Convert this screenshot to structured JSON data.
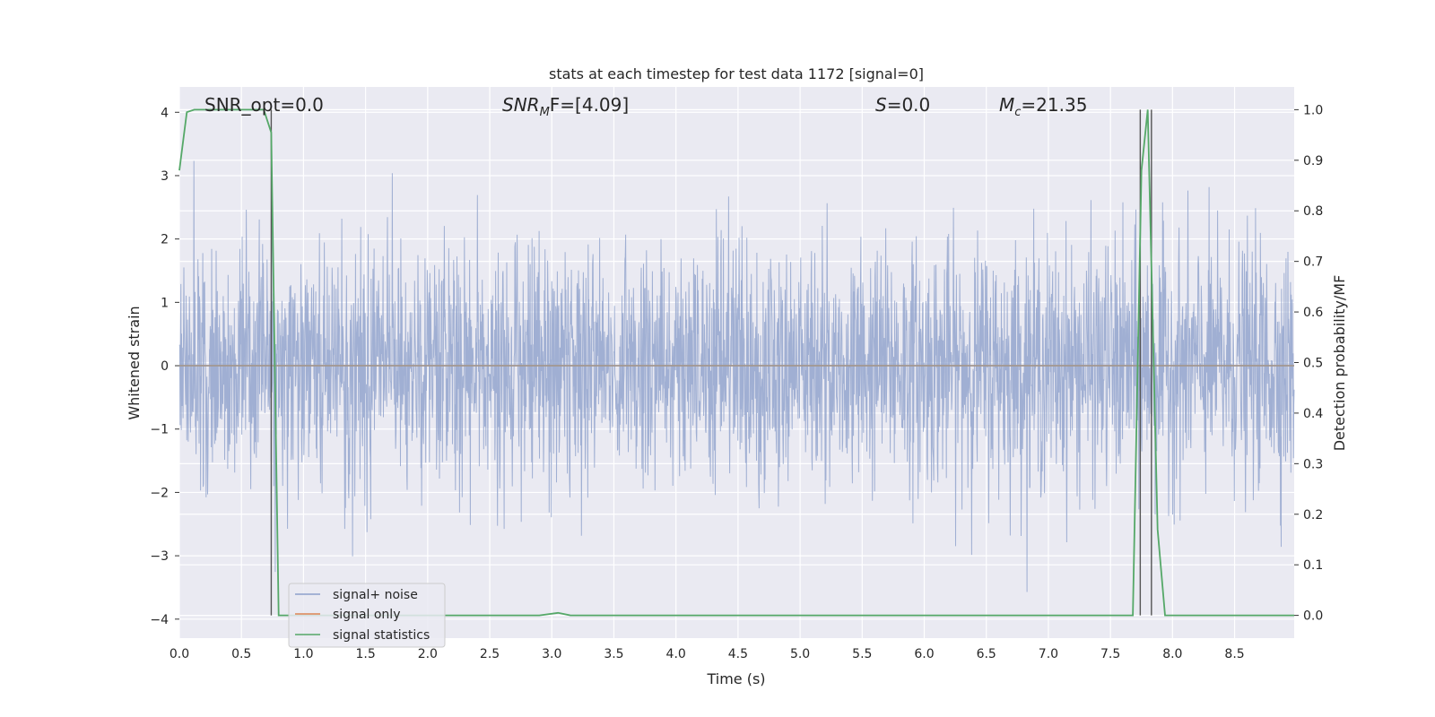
{
  "chart_data": {
    "type": "line",
    "title": "stats at each timestep for test data 1172 [signal=0]",
    "xlabel": "Time (s)",
    "ylabel_left": "Whitened strain",
    "ylabel_right": "Detection probability/MF",
    "xlim": [
      0.0,
      8.98
    ],
    "ylim_left": [
      -4.3,
      4.4
    ],
    "ylim_right": [
      -0.045,
      1.045
    ],
    "xticks": [
      0.0,
      0.5,
      1.0,
      1.5,
      2.0,
      2.5,
      3.0,
      3.5,
      4.0,
      4.5,
      5.0,
      5.5,
      6.0,
      6.5,
      7.0,
      7.5,
      8.0,
      8.5
    ],
    "yticks_left": [
      -4,
      -3,
      -2,
      -1,
      0,
      1,
      2,
      3,
      4
    ],
    "yticks_right": [
      0.0,
      0.1,
      0.2,
      0.3,
      0.4,
      0.5,
      0.6,
      0.7,
      0.8,
      0.9,
      1.0
    ],
    "grid": true,
    "legend_location": "lower-left",
    "annotations": {
      "snr_opt": "SNR_opt=0.0",
      "snr_mf_base": "SNR",
      "snr_mf_sub": "M",
      "snr_mf_rest": "F=[4.09]",
      "s_label": "S",
      "s_value": "=0.0",
      "mc_base": "M",
      "mc_sub": "c",
      "mc_value": "=21.35"
    },
    "series": [
      {
        "name": "signal+ noise",
        "axis": "left",
        "color": "#8da0cb",
        "description_of_values": "white-noise strain, approx. band -1.5 to 1.6 with spikes to about +/-3.5",
        "noise_envelope_min": -3.9,
        "noise_envelope_max": 3.6
      },
      {
        "name": "signal only",
        "axis": "left",
        "color": "#dd8452",
        "x": [
          0.0,
          8.98
        ],
        "y": [
          0.0,
          0.0
        ]
      },
      {
        "name": "signal statistics",
        "axis": "right",
        "color": "#55a868",
        "x": [
          0.0,
          0.06,
          0.12,
          0.5,
          0.68,
          0.74,
          0.8,
          0.85,
          2.9,
          3.05,
          3.15,
          3.5,
          4.7,
          7.68,
          7.75,
          7.8,
          7.88,
          7.94,
          8.98
        ],
        "y": [
          0.88,
          0.995,
          1.0,
          1.0,
          1.0,
          0.955,
          0.0,
          0.0,
          0.0,
          0.005,
          0.0,
          0.0,
          0.0,
          0.0,
          0.88,
          1.0,
          0.17,
          0.0,
          0.0
        ]
      }
    ],
    "vertical_lines": [
      0.74,
      7.74,
      7.83
    ],
    "vertical_line_color": "#555555"
  }
}
